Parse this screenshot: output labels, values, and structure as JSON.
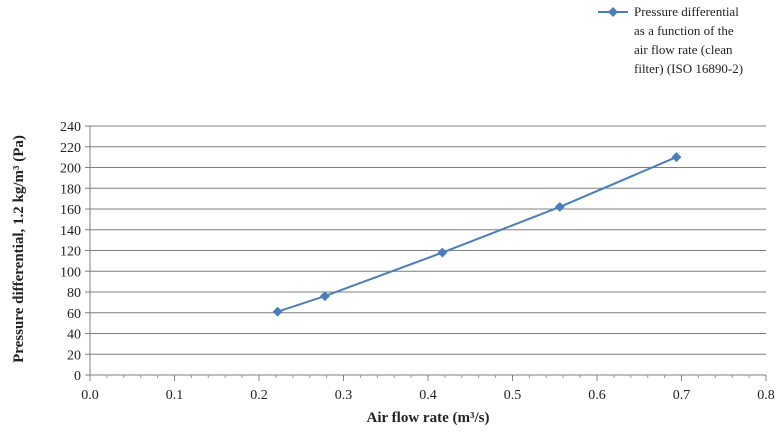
{
  "chart_data": {
    "type": "line",
    "title": "",
    "xlabel": "Air flow rate (m³/s)",
    "ylabel": "Pressure differential, 1.2 kg/m³ (Pa)",
    "xlim": [
      0.0,
      0.8
    ],
    "ylim": [
      0,
      240
    ],
    "x_ticks": [
      "0.0",
      "0.1",
      "0.2",
      "0.3",
      "0.4",
      "0.5",
      "0.6",
      "0.7",
      "0.8"
    ],
    "y_ticks": [
      "0",
      "20",
      "40",
      "60",
      "80",
      "100",
      "120",
      "140",
      "160",
      "180",
      "200",
      "220",
      "240"
    ],
    "grid": "horizontal",
    "legend_position": "top-right",
    "legend_lines": [
      "Pressure differential",
      "as a function of the",
      "air flow rate (clean",
      "filter) (ISO 16890-2)"
    ],
    "series": [
      {
        "name": "Pressure differential as a function of the air flow rate (clean filter) (ISO 16890-2)",
        "color": "#4a7ebb",
        "marker": "diamond",
        "x": [
          0.222,
          0.278,
          0.417,
          0.556,
          0.694
        ],
        "y": [
          61,
          76,
          118,
          162,
          210
        ]
      }
    ]
  }
}
